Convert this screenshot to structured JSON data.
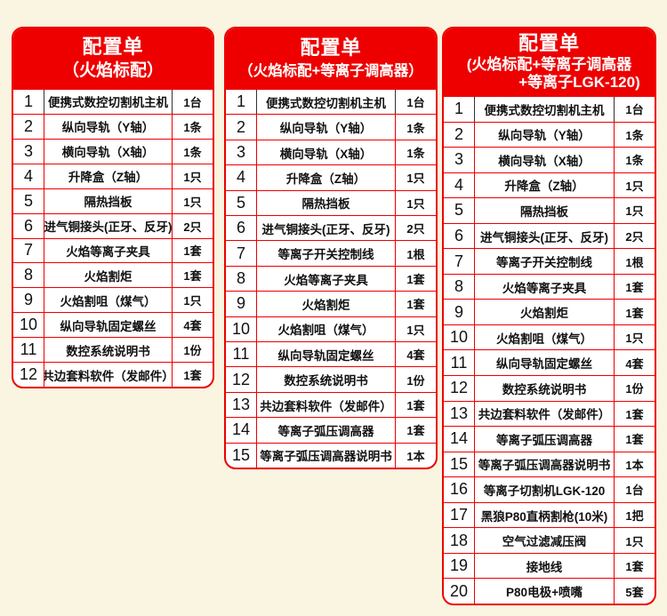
{
  "colors": {
    "background": "#faf5e1",
    "card_background": "#ffffff",
    "accent_red": "#ee0000",
    "header_text": "#ffffff",
    "body_text": "#111111",
    "first_row_divider": "#333333"
  },
  "tables": [
    {
      "title": "配置单",
      "subtitle_lines": [
        "（火焰标配）"
      ],
      "rows": [
        {
          "no": "1",
          "item": "便携式数控切割机主机",
          "qty": "1台"
        },
        {
          "no": "2",
          "item": "纵向导轨（Y轴）",
          "qty": "1条"
        },
        {
          "no": "3",
          "item": "横向导轨（X轴）",
          "qty": "1条"
        },
        {
          "no": "4",
          "item": "升降盒（Z轴）",
          "qty": "1只"
        },
        {
          "no": "5",
          "item": "隔热挡板",
          "qty": "1只"
        },
        {
          "no": "6",
          "item": "进气铜接头(正牙、反牙)",
          "qty": "2只"
        },
        {
          "no": "7",
          "item": "火焰等离子夹具",
          "qty": "1套"
        },
        {
          "no": "8",
          "item": "火焰割炬",
          "qty": "1套"
        },
        {
          "no": "9",
          "item": "火焰割咀（煤气）",
          "qty": "1只"
        },
        {
          "no": "10",
          "item": "纵向导轨固定螺丝",
          "qty": "4套"
        },
        {
          "no": "11",
          "item": "数控系统说明书",
          "qty": "1份"
        },
        {
          "no": "12",
          "item": "共边套料软件（发邮件）",
          "qty": "1套"
        }
      ]
    },
    {
      "title": "配置单",
      "subtitle_lines": [
        "（火焰标配+等离子调高器）"
      ],
      "rows": [
        {
          "no": "1",
          "item": "便携式数控切割机主机",
          "qty": "1台"
        },
        {
          "no": "2",
          "item": "纵向导轨（Y轴）",
          "qty": "1条"
        },
        {
          "no": "3",
          "item": "横向导轨（X轴）",
          "qty": "1条"
        },
        {
          "no": "4",
          "item": "升降盒（Z轴）",
          "qty": "1只"
        },
        {
          "no": "5",
          "item": "隔热挡板",
          "qty": "1只"
        },
        {
          "no": "6",
          "item": "进气铜接头(正牙、反牙)",
          "qty": "2只"
        },
        {
          "no": "7",
          "item": "等离子开关控制线",
          "qty": "1根"
        },
        {
          "no": "8",
          "item": "火焰等离子夹具",
          "qty": "1套"
        },
        {
          "no": "9",
          "item": "火焰割炬",
          "qty": "1套"
        },
        {
          "no": "10",
          "item": "火焰割咀（煤气）",
          "qty": "1只"
        },
        {
          "no": "11",
          "item": "纵向导轨固定螺丝",
          "qty": "4套"
        },
        {
          "no": "12",
          "item": "数控系统说明书",
          "qty": "1份"
        },
        {
          "no": "13",
          "item": "共边套料软件（发邮件）",
          "qty": "1套"
        },
        {
          "no": "14",
          "item": "等离子弧压调高器",
          "qty": "1套"
        },
        {
          "no": "15",
          "item": "等离子弧压调高器说明书",
          "qty": "1本"
        }
      ]
    },
    {
      "title": "配置单",
      "subtitle_lines": [
        "(火焰标配+等离子调高器",
        "+等离子LGK-120)"
      ],
      "rows": [
        {
          "no": "1",
          "item": "便携式数控切割机主机",
          "qty": "1台"
        },
        {
          "no": "2",
          "item": "纵向导轨（Y轴）",
          "qty": "1条"
        },
        {
          "no": "3",
          "item": "横向导轨（X轴）",
          "qty": "1条"
        },
        {
          "no": "4",
          "item": "升降盒（Z轴）",
          "qty": "1只"
        },
        {
          "no": "5",
          "item": "隔热挡板",
          "qty": "1只"
        },
        {
          "no": "6",
          "item": "进气铜接头(正牙、反牙)",
          "qty": "2只"
        },
        {
          "no": "7",
          "item": "等离子开关控制线",
          "qty": "1根"
        },
        {
          "no": "8",
          "item": "火焰等离子夹具",
          "qty": "1套"
        },
        {
          "no": "9",
          "item": "火焰割炬",
          "qty": "1套"
        },
        {
          "no": "10",
          "item": "火焰割咀（煤气）",
          "qty": "1只"
        },
        {
          "no": "11",
          "item": "纵向导轨固定螺丝",
          "qty": "4套"
        },
        {
          "no": "12",
          "item": "数控系统说明书",
          "qty": "1份"
        },
        {
          "no": "13",
          "item": "共边套料软件（发邮件）",
          "qty": "1套"
        },
        {
          "no": "14",
          "item": "等离子弧压调高器",
          "qty": "1套"
        },
        {
          "no": "15",
          "item": "等离子弧压调高器说明书",
          "qty": "1本"
        },
        {
          "no": "16",
          "item": "等离子切割机LGK-120",
          "qty": "1台"
        },
        {
          "no": "17",
          "item": "黑狼P80直柄割枪(10米)",
          "qty": "1把"
        },
        {
          "no": "18",
          "item": "空气过滤减压阀",
          "qty": "1只"
        },
        {
          "no": "19",
          "item": "接地线",
          "qty": "1套"
        },
        {
          "no": "20",
          "item": "P80电极+喷嘴",
          "qty": "5套"
        }
      ]
    }
  ]
}
